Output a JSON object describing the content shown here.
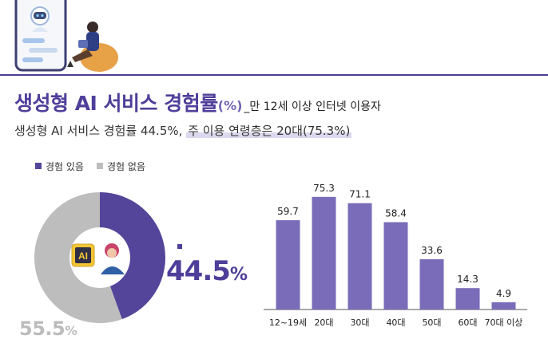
{
  "title": {
    "main": "생성형 AI 서비스 경험률",
    "unit": "(%)",
    "sub": "_만 12세 이상 인터넷 이용자"
  },
  "subtitle": {
    "prefix": "생성형 AI 서비스 경험률 44.5%,",
    "highlight": "주 이용 연령층은 20대(75.3%)"
  },
  "legend": [
    {
      "label": "경험 있음",
      "color": "#54459a"
    },
    {
      "label": "경험 없음",
      "color": "#bdbdbd"
    }
  ],
  "badge": {
    "ai_text": "AI"
  },
  "labels": {
    "yes": "44.5",
    "no": "55.5",
    "percent": "%"
  },
  "chart_data": [
    {
      "type": "pie",
      "categories": [
        "경험 있음",
        "경험 없음"
      ],
      "values": [
        44.5,
        55.5
      ],
      "colors": [
        "#54459a",
        "#bdbdbd"
      ],
      "legend_position": "top-left"
    },
    {
      "type": "bar",
      "categories": [
        "12~19세",
        "20대",
        "30대",
        "40대",
        "50대",
        "60대",
        "70대 이상"
      ],
      "values": [
        59.7,
        75.3,
        71.1,
        58.4,
        33.6,
        14.3,
        4.9
      ],
      "value_labels": [
        "59.7",
        "75.3",
        "71.1",
        "58.4",
        "33.6",
        "14.3",
        "4.9"
      ],
      "color": "#7a6cb8",
      "ylim": [
        0,
        80
      ],
      "grid": false
    }
  ]
}
